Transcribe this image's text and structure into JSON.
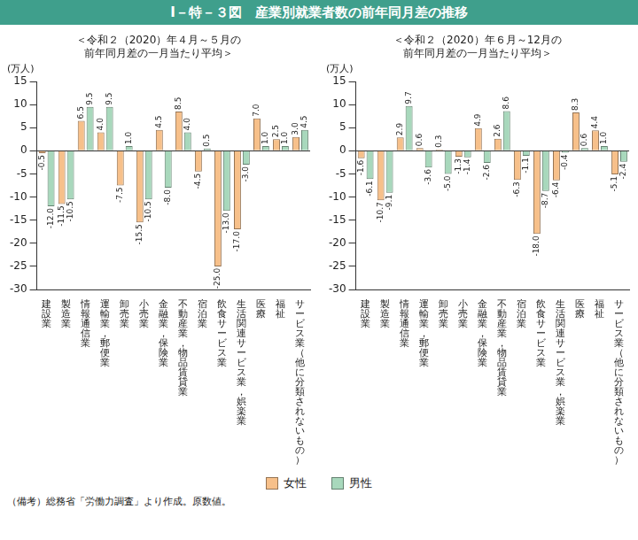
{
  "title": "Ⅰ－特－３図　産業別就業者数の前年同月差の推移",
  "note": "（備考）総務省「労働力調査」より作成。原数値。",
  "chart_data": [
    {
      "type": "bar",
      "title": [
        "＜令和２（2020）年４月～５月の",
        "前年同月差の一月当たり平均＞"
      ],
      "y_label": "(万人)",
      "categories": [
        "建設業",
        "製造業",
        "情報通信業",
        "運輸業，郵便業",
        "卸売業",
        "小売業",
        "金融業，保険業",
        "不動産業，物品賃貸業",
        "宿泊業",
        "飲食サービス業",
        "生活関連サービス業，娯楽業",
        "医療",
        "福祉",
        "サービス業（他に分類されないもの）"
      ],
      "series": [
        {
          "name": "女性",
          "color": "#f7c08a",
          "values": [
            -0.5,
            -11.5,
            6.5,
            4.0,
            -7.5,
            -15.5,
            4.5,
            8.5,
            -4.5,
            -25.0,
            -17.0,
            7.0,
            2.5,
            3.0
          ],
          "value_labels": [
            "-0.5",
            "-11.5",
            "6.5",
            "4.0",
            "-7.5",
            "-15.5",
            "4.5",
            "8.5",
            "-4.5",
            "-25.0",
            "-17.0",
            "7.0",
            "2.5",
            "3.0"
          ]
        },
        {
          "name": "男性",
          "color": "#a8d8bc",
          "values": [
            -12.0,
            -10.5,
            9.5,
            9.5,
            1.0,
            -10.5,
            -8.0,
            4.0,
            0.5,
            -13.0,
            -3.0,
            1.0,
            1.0,
            4.5
          ],
          "value_labels": [
            "-12.0",
            "-10.5",
            "9.5",
            "9.5",
            "1.0",
            "-10.5",
            "-8.0",
            "4.0",
            "0.5",
            "-13.0",
            "-3.0",
            "1.0",
            "1.0",
            "4.5"
          ]
        }
      ],
      "ylim": [
        -30,
        15
      ],
      "yticks": [
        -30,
        -25,
        -20,
        -15,
        -10,
        -5,
        0,
        5,
        10,
        15
      ],
      "grid": false,
      "data_labels": true,
      "legend": "bottom"
    },
    {
      "type": "bar",
      "title": [
        "＜令和２（2020）年６月～12月の",
        "前年同月差の一月当たり平均＞"
      ],
      "y_label": "(万人)",
      "categories": [
        "建設業",
        "製造業",
        "情報通信業",
        "運輸業，郵便業",
        "卸売業",
        "小売業",
        "金融業，保険業",
        "不動産業，物品賃貸業",
        "宿泊業",
        "飲食サービス業",
        "生活関連サービス業，娯楽業",
        "医療",
        "福祉",
        "サービス業（他に分類されないもの）"
      ],
      "series": [
        {
          "name": "女性",
          "color": "#f7c08a",
          "values": [
            -1.6,
            -10.7,
            2.9,
            0.6,
            0.3,
            -1.3,
            4.9,
            2.6,
            -6.3,
            -18.0,
            -6.4,
            8.3,
            4.4,
            -5.1
          ],
          "value_labels": [
            "-1.6",
            "-10.7",
            "2.9",
            "0.6",
            "0.3",
            "-1.3",
            "4.9",
            "2.6",
            "-6.3",
            "-18.0",
            "-6.4",
            "8.3",
            "4.4",
            "-5.1"
          ]
        },
        {
          "name": "男性",
          "color": "#a8d8bc",
          "values": [
            -6.1,
            -9.1,
            9.7,
            -3.6,
            -5.0,
            -1.4,
            -2.6,
            8.6,
            -1.1,
            -8.7,
            -0.4,
            0.6,
            1.0,
            -2.4
          ],
          "value_labels": [
            "-6.1",
            "-9.1",
            "9.7",
            "-3.6",
            "-5.0",
            "-1.4",
            "-2.6",
            "8.6",
            "-1.1",
            "-8.7",
            "-0.4",
            "0.6",
            "1.0",
            "-2.4"
          ]
        }
      ],
      "ylim": [
        -30,
        15
      ],
      "yticks": [
        -30,
        -25,
        -20,
        -15,
        -10,
        -5,
        0,
        5,
        10,
        15
      ],
      "grid": false,
      "data_labels": true,
      "legend": "bottom"
    }
  ]
}
